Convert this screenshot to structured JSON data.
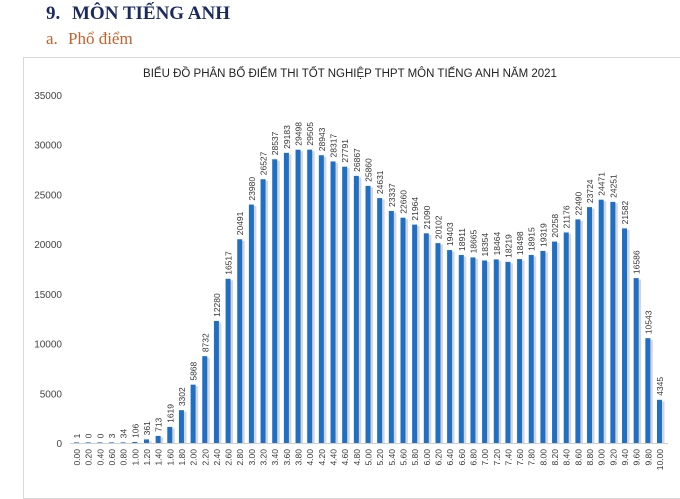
{
  "heading": {
    "number": "9.",
    "title": "MÔN TIẾNG ANH"
  },
  "subheading": {
    "letter": "a.",
    "title": "Phổ điểm"
  },
  "chart_data": {
    "type": "bar",
    "title": "BIỂU ĐỒ PHÂN BỐ ĐIỂM THI TỐT NGHIỆP THPT MÔN TIẾNG ANH NĂM 2021",
    "xlabel": "",
    "ylabel": "",
    "ylim": [
      0,
      35000
    ],
    "yticks": [
      "0",
      "5000",
      "10000",
      "15000",
      "20000",
      "25000",
      "30000",
      "35000"
    ],
    "grid": false,
    "bar_color": "#1f6fc5",
    "categories": [
      "0.00",
      "0.20",
      "0.40",
      "0.60",
      "0.80",
      "1.00",
      "1.20",
      "1.40",
      "1.60",
      "1.80",
      "2.00",
      "2.20",
      "2.40",
      "2.60",
      "2.80",
      "3.00",
      "3.20",
      "3.40",
      "3.60",
      "3.80",
      "4.00",
      "4.20",
      "4.40",
      "4.60",
      "4.80",
      "5.00",
      "5.20",
      "5.40",
      "5.60",
      "5.80",
      "6.00",
      "6.20",
      "6.40",
      "6.60",
      "6.80",
      "7.00",
      "7.20",
      "7.40",
      "7.60",
      "7.80",
      "8.00",
      "8.20",
      "8.40",
      "8.60",
      "8.80",
      "9.00",
      "9.20",
      "9.40",
      "9.60",
      "9.80",
      "10.00"
    ],
    "values": [
      1,
      0,
      0,
      3,
      34,
      106,
      361,
      713,
      1619,
      3302,
      5868,
      8732,
      12280,
      16517,
      20491,
      23980,
      26527,
      28537,
      29183,
      29498,
      29505,
      28943,
      28317,
      27791,
      26867,
      25860,
      24631,
      23337,
      22660,
      21964,
      21090,
      20102,
      19403,
      18911,
      18665,
      18354,
      18464,
      18219,
      18498,
      18915,
      19319,
      20258,
      21176,
      22490,
      23724,
      24471,
      24251,
      21582,
      16586,
      10543,
      4345
    ]
  }
}
